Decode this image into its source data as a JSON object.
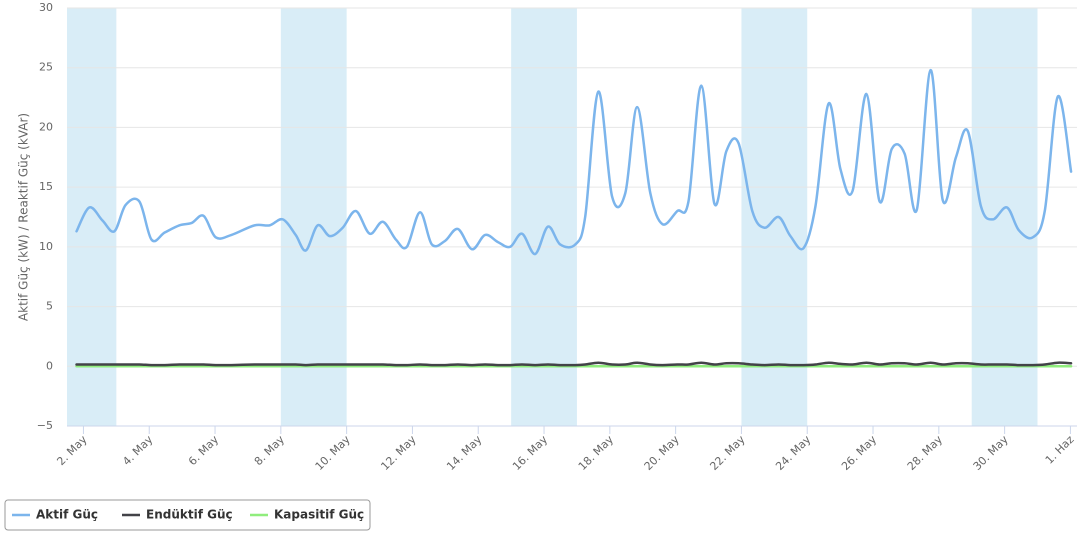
{
  "chart_data": {
    "type": "line",
    "y_axis_label": "Aktif Güç (kW) / Reaktif Güç (kVAr)",
    "xlim": [
      1.5,
      32.2
    ],
    "xticks": [
      {
        "value": 2,
        "label": "2. May"
      },
      {
        "value": 4,
        "label": "4. May"
      },
      {
        "value": 6,
        "label": "6. May"
      },
      {
        "value": 8,
        "label": "8. May"
      },
      {
        "value": 10,
        "label": "10. May"
      },
      {
        "value": 12,
        "label": "12. May"
      },
      {
        "value": 14,
        "label": "14. May"
      },
      {
        "value": 16,
        "label": "16. May"
      },
      {
        "value": 18,
        "label": "18. May"
      },
      {
        "value": 20,
        "label": "20. May"
      },
      {
        "value": 22,
        "label": "22. May"
      },
      {
        "value": 24,
        "label": "24. May"
      },
      {
        "value": 26,
        "label": "26. May"
      },
      {
        "value": 28,
        "label": "28. May"
      },
      {
        "value": 30,
        "label": "30. May"
      },
      {
        "value": 32,
        "label": "1. Haz"
      }
    ],
    "ylim": [
      -5,
      30
    ],
    "yticks": [
      {
        "value": -5,
        "label": "−5"
      },
      0,
      5,
      10,
      15,
      20,
      25,
      30
    ],
    "grid": true,
    "plot_bands": [
      [
        1,
        3
      ],
      [
        8,
        10
      ],
      [
        15,
        17
      ],
      [
        22,
        24
      ],
      [
        29,
        31
      ]
    ],
    "band_color": "#d9edf7",
    "legend": "bottom-left",
    "x": [
      1.79,
      2.18,
      2.58,
      2.94,
      3.28,
      3.7,
      4.07,
      4.47,
      4.92,
      5.29,
      5.65,
      6.02,
      6.5,
      7.2,
      7.66,
      8.06,
      8.45,
      8.76,
      9.12,
      9.49,
      9.88,
      10.28,
      10.7,
      11.1,
      11.5,
      11.83,
      12.23,
      12.59,
      12.99,
      13.38,
      13.81,
      14.21,
      14.6,
      14.97,
      15.33,
      15.73,
      16.12,
      16.49,
      16.95,
      17.25,
      17.65,
      18.07,
      18.47,
      18.83,
      19.23,
      19.6,
      20.05,
      20.39,
      20.78,
      21.18,
      21.54,
      21.91,
      22.33,
      22.7,
      23.13,
      23.49,
      23.89,
      24.25,
      24.65,
      25.01,
      25.38,
      25.8,
      26.2,
      26.57,
      26.96,
      27.33,
      27.75,
      28.12,
      28.52,
      28.88,
      29.28,
      29.64,
      30.07,
      30.43,
      30.86,
      31.22,
      31.62,
      32.02
    ],
    "series": [
      {
        "name": "Aktif Güç",
        "color": "#7cb5ec",
        "values": [
          11.3,
          13.3,
          12.2,
          11.3,
          13.5,
          13.8,
          10.6,
          11.2,
          11.8,
          12.0,
          12.6,
          10.8,
          11.0,
          11.8,
          11.8,
          12.3,
          11.0,
          9.7,
          11.8,
          10.9,
          11.6,
          13.0,
          11.1,
          12.1,
          10.6,
          10.0,
          12.9,
          10.2,
          10.5,
          11.5,
          9.8,
          11.0,
          10.4,
          10.0,
          11.1,
          9.4,
          11.7,
          10.2,
          10.2,
          12.5,
          23.0,
          14.2,
          14.5,
          21.7,
          14.5,
          11.9,
          13.0,
          13.8,
          23.5,
          13.6,
          18.0,
          18.7,
          13.0,
          11.6,
          12.5,
          10.9,
          9.9,
          13.4,
          22.0,
          16.5,
          14.7,
          22.8,
          13.8,
          18.2,
          17.8,
          13.1,
          24.8,
          13.9,
          17.5,
          19.7,
          13.4,
          12.3,
          13.3,
          11.4,
          10.8,
          13.0,
          22.6,
          16.3
        ]
      },
      {
        "name": "Endüktif Güç",
        "color": "#434348",
        "values": [
          0.15,
          0.15,
          0.15,
          0.15,
          0.15,
          0.15,
          0.1,
          0.1,
          0.15,
          0.15,
          0.15,
          0.1,
          0.1,
          0.15,
          0.15,
          0.15,
          0.15,
          0.1,
          0.15,
          0.15,
          0.15,
          0.15,
          0.15,
          0.15,
          0.1,
          0.1,
          0.15,
          0.1,
          0.1,
          0.15,
          0.1,
          0.15,
          0.1,
          0.1,
          0.15,
          0.1,
          0.15,
          0.1,
          0.1,
          0.15,
          0.3,
          0.15,
          0.15,
          0.3,
          0.15,
          0.1,
          0.15,
          0.15,
          0.3,
          0.15,
          0.25,
          0.25,
          0.15,
          0.1,
          0.15,
          0.1,
          0.1,
          0.15,
          0.3,
          0.2,
          0.15,
          0.3,
          0.15,
          0.25,
          0.25,
          0.15,
          0.3,
          0.15,
          0.25,
          0.25,
          0.15,
          0.15,
          0.15,
          0.1,
          0.1,
          0.15,
          0.3,
          0.25
        ]
      },
      {
        "name": "Kapasitif Güç",
        "color": "#90ed7d",
        "values": [
          0,
          0,
          0,
          0,
          0,
          0,
          0,
          0,
          0,
          0,
          0,
          0,
          0,
          0,
          0,
          0,
          0,
          0,
          0,
          0,
          0,
          0,
          0,
          0,
          0,
          0,
          0,
          0,
          0,
          0,
          0,
          0,
          0,
          0,
          0,
          0,
          0,
          0,
          0,
          0,
          0,
          0,
          0,
          0,
          0,
          0,
          0,
          0,
          0,
          0,
          0,
          0,
          0,
          0,
          0,
          0,
          0,
          0,
          0,
          0,
          0,
          0,
          0,
          0,
          0,
          0,
          0,
          0,
          0,
          0,
          0,
          0,
          0,
          0,
          0,
          0,
          0,
          0
        ]
      }
    ]
  }
}
